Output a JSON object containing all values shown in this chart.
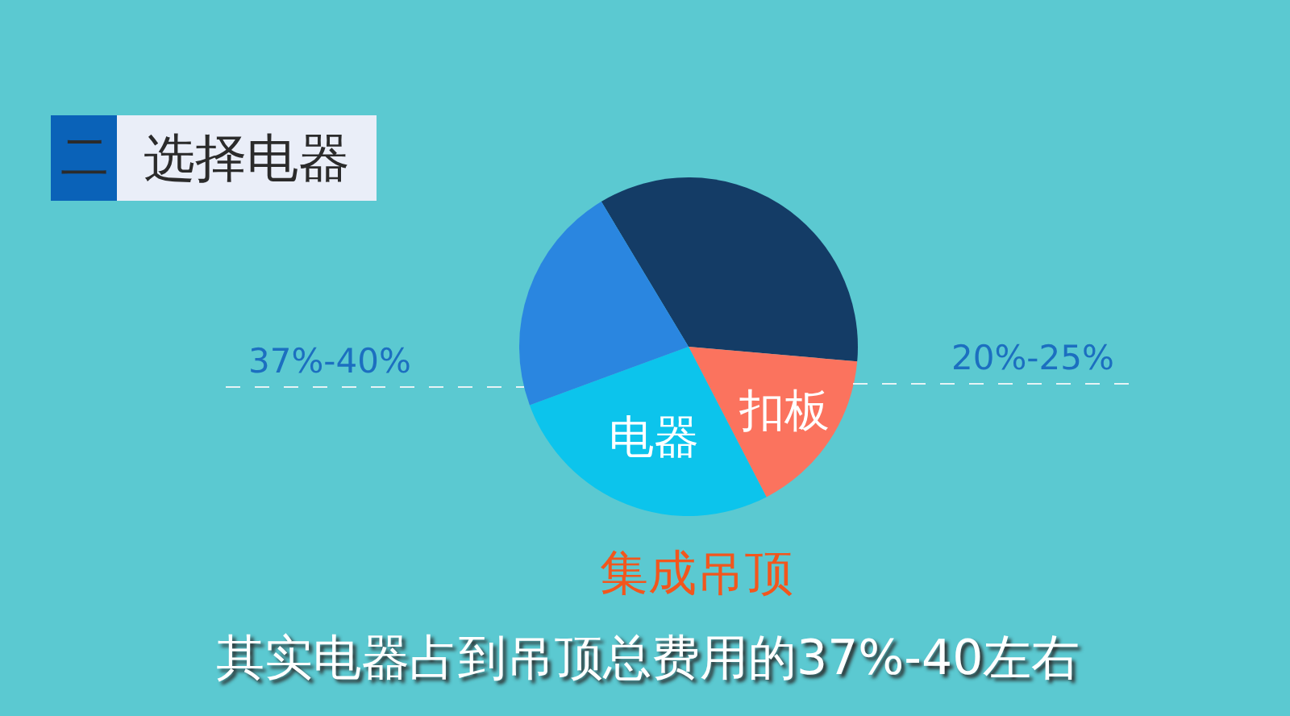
{
  "chart_data": {
    "type": "pie",
    "title": "集成吊顶",
    "categories": [
      null,
      "扣板",
      "电器",
      null
    ],
    "values": [
      35,
      16,
      27,
      22
    ],
    "colors": [
      "#143c66",
      "#fb735e",
      "#0cc4ec",
      "#2a86e0"
    ],
    "annotations": [
      "二",
      "选择电器",
      "37%-40%",
      "20%-25%",
      "其实电器占到吊顶总费用的37%-40左右"
    ],
    "legend": false
  }
}
